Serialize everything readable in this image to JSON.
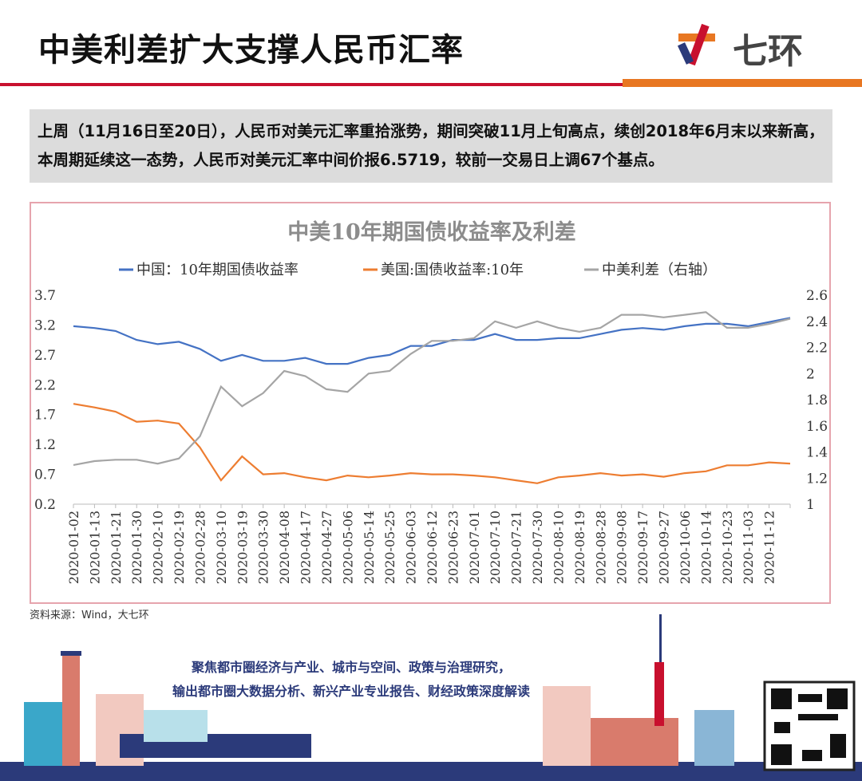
{
  "header": {
    "title": "中美利差扩大支撑人民币汇率",
    "logo": "七环"
  },
  "summary": "上周（11月16日至20日），人民币对美元汇率重拾涨势，期间突破11月上旬高点，续创2018年6月末以来新高，本周期延续这一态势，人民币对美元汇率中间价报6.5719，较前一交易日上调67个基点。",
  "chart_data": {
    "type": "line",
    "title": "中美10年期国债收益率及利差",
    "categories": [
      "2020-01-02",
      "2020-01-13",
      "2020-01-21",
      "2020-01-30",
      "2020-02-10",
      "2020-02-19",
      "2020-02-28",
      "2020-03-10",
      "2020-03-19",
      "2020-03-30",
      "2020-04-08",
      "2020-04-17",
      "2020-04-27",
      "2020-05-06",
      "2020-05-14",
      "2020-05-25",
      "2020-06-03",
      "2020-06-12",
      "2020-06-23",
      "2020-07-01",
      "2020-07-10",
      "2020-07-21",
      "2020-07-30",
      "2020-08-10",
      "2020-08-19",
      "2020-08-28",
      "2020-09-08",
      "2020-09-17",
      "2020-09-27",
      "2020-10-06",
      "2020-10-14",
      "2020-10-23",
      "2020-11-03",
      "2020-11-12",
      null
    ],
    "series": [
      {
        "name": "中国：10年期国债收益率",
        "color": "#4472c4",
        "values": [
          3.18,
          3.15,
          3.1,
          2.95,
          2.88,
          2.92,
          2.8,
          2.6,
          2.7,
          2.6,
          2.6,
          2.65,
          2.55,
          2.55,
          2.65,
          2.7,
          2.85,
          2.85,
          2.95,
          2.95,
          3.05,
          2.95,
          2.95,
          2.98,
          2.98,
          3.05,
          3.12,
          3.15,
          3.12,
          3.18,
          3.22,
          3.22,
          3.18,
          3.25,
          3.32
        ]
      },
      {
        "name": "美国:国债收益率:10年",
        "color": "#ed7d31",
        "values": [
          1.88,
          1.82,
          1.75,
          1.58,
          1.6,
          1.55,
          1.15,
          0.6,
          1.0,
          0.7,
          0.72,
          0.65,
          0.6,
          0.68,
          0.65,
          0.68,
          0.72,
          0.7,
          0.7,
          0.68,
          0.65,
          0.6,
          0.55,
          0.65,
          0.68,
          0.72,
          0.68,
          0.7,
          0.66,
          0.72,
          0.75,
          0.85,
          0.85,
          0.9,
          0.88
        ]
      },
      {
        "name": "中美利差（右轴）",
        "color": "#a5a5a5",
        "axis": "y2",
        "values": [
          1.3,
          1.33,
          1.34,
          1.34,
          1.31,
          1.35,
          1.52,
          1.9,
          1.75,
          1.85,
          2.02,
          1.98,
          1.88,
          1.86,
          2.0,
          2.02,
          2.15,
          2.25,
          2.25,
          2.27,
          2.4,
          2.35,
          2.4,
          2.35,
          2.32,
          2.35,
          2.45,
          2.45,
          2.43,
          2.45,
          2.47,
          2.35,
          2.35,
          2.38,
          2.42
        ]
      }
    ],
    "ylim": [
      0.2,
      3.7
    ],
    "yticks": [
      0.2,
      0.7,
      1.2,
      1.7,
      2.2,
      2.7,
      3.2,
      3.7
    ],
    "y2lim": [
      1,
      2.6
    ],
    "y2ticks": [
      1,
      1.2,
      1.4,
      1.6,
      1.8,
      2,
      2.2,
      2.4,
      2.6
    ]
  },
  "source": "资料来源：Wind，大七环",
  "footer": {
    "lines": [
      "聚焦都市圈经济与产业、城市与空间、政策与治理研究，",
      "输出都市圈大数据分析、新兴产业专业报告、财经政策深度解读"
    ]
  }
}
